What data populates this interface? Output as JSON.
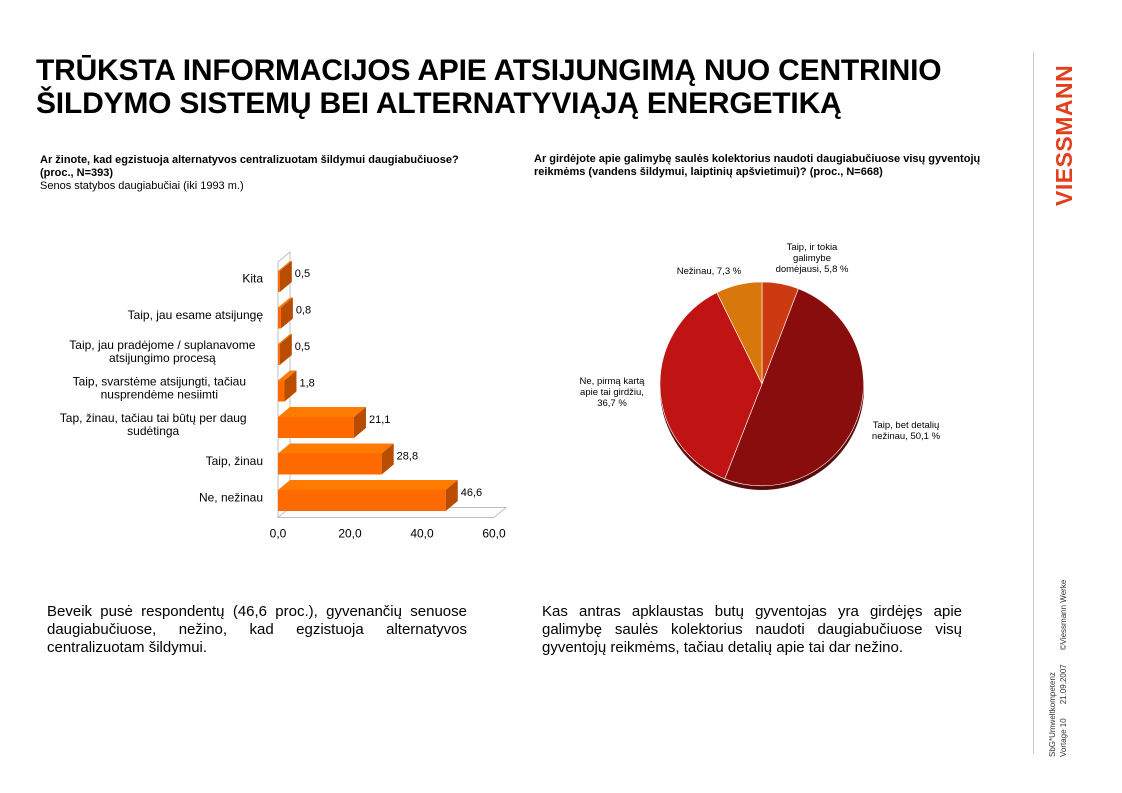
{
  "title": {
    "line1": "TRŪKSTA INFORMACIJOS APIE ATSIJUNGIMĄ NUO CENTRINIO",
    "line2": "ŠILDYMO SISTEMŲ BEI ALTERNATYVIĄJĄ ENERGETIKĄ"
  },
  "logo_text": "VIESSMANN",
  "meta": {
    "line1a": "SbG*Umweltkompetenz",
    "line2a": "Vortage 10",
    "line2b": "21.09.2007",
    "line2c": "©Viessmann Werke"
  },
  "left_question": {
    "text": "Ar žinote, kad egzistuoja alternatyvos centralizuotam šildymui daugiabučiuose? (proc., N=393)",
    "subtitle": "Senos statybos daugiabučiai (iki 1993 m.)"
  },
  "right_question": {
    "text": "Ar girdėjote apie galimybę saulės kolektorius naudoti daugiabučiuose visų gyventojų reikmėms (vandens šildymui, laiptinių apšvietimui)? (proc.,  N=668)"
  },
  "left_summary": "Beveik pusė respondentų (46,6 proc.), gyvenančių senuose daugiabučiuose, nežino, kad egzistuoja alternatyvos centralizuotam šildymui.",
  "right_summary": "Kas antras apklaustas butų gyventojas yra girdėjęs apie galimybę saulės kolektorius naudoti daugiabučiuose visų gyventojų reikmėms, tačiau detalių apie tai dar nežino.",
  "chart_data": [
    {
      "type": "bar",
      "orientation": "horizontal",
      "categories": [
        [
          "Kita"
        ],
        [
          "Taip, jau esame atsijungę"
        ],
        [
          "Taip, jau pradėjome / suplanavome",
          "atsijungimo procesą"
        ],
        [
          "Taip, svarstėme atsijungti, tačiau",
          "nusprendėme nesiimti"
        ],
        [
          "Tap, žinau, tačiau tai būtų per daug",
          "sudėtinga"
        ],
        [
          "Taip, žinau"
        ],
        [
          "Ne, nežinau"
        ]
      ],
      "values": [
        0.5,
        0.8,
        0.5,
        1.8,
        21.1,
        28.8,
        46.6
      ],
      "data_labels": [
        "0,5",
        "0,8",
        "0,5",
        "1,8",
        "21,1",
        "28,8",
        "46,6"
      ],
      "xticks": [
        "0,0",
        "20,0",
        "40,0",
        "60,0"
      ],
      "xlim": [
        0,
        60
      ],
      "color": "#ff6a00",
      "title": "",
      "xlabel": "",
      "ylabel": ""
    },
    {
      "type": "pie",
      "slices": [
        {
          "label": [
            "Taip, ir tokia",
            "galimybe",
            "domėjausi,  5,8 %"
          ],
          "value": 5.8,
          "color": "#cc3a12"
        },
        {
          "label": [
            "Taip, bet detalių",
            "nežinau, 50,1 %"
          ],
          "value": 50.1,
          "color": "#8a0d0d"
        },
        {
          "label": [
            "Ne, pirmą kartą",
            "apie tai girdžiu,",
            "36,7 %"
          ],
          "value": 36.7,
          "color": "#c01414"
        },
        {
          "label": [
            "Nežinau, 7,3 %"
          ],
          "value": 7.3,
          "color": "#d8770c"
        }
      ],
      "title": ""
    }
  ]
}
